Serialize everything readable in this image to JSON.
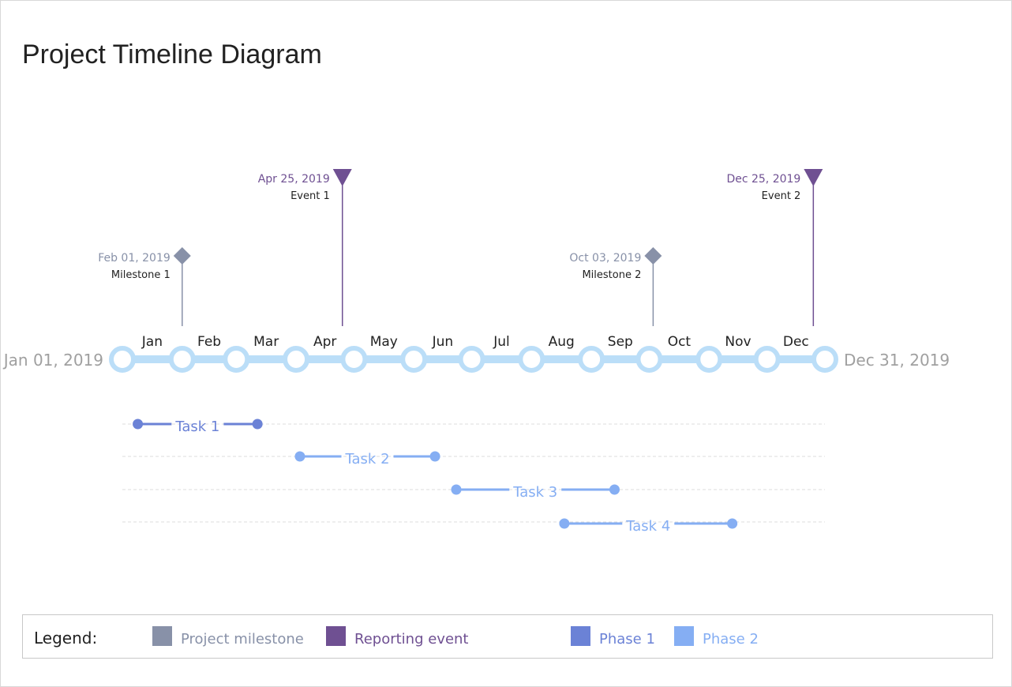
{
  "title": "Project Timeline Diagram",
  "timeline": {
    "start_label": "Jan 01, 2019",
    "end_label": "Dec 31, 2019",
    "year": 2019,
    "months": [
      "Jan",
      "Feb",
      "Mar",
      "Apr",
      "May",
      "Jun",
      "Jul",
      "Aug",
      "Sep",
      "Oct",
      "Nov",
      "Dec"
    ],
    "axis_color": "#BBDEF8"
  },
  "markers": [
    {
      "type": "milestone",
      "date": "2019-02-01",
      "date_label": "Feb 01, 2019",
      "label": "Milestone 1",
      "level": "low"
    },
    {
      "type": "event",
      "date": "2019-04-25",
      "date_label": "Apr 25, 2019",
      "label": "Event 1",
      "level": "high"
    },
    {
      "type": "milestone",
      "date": "2019-10-03",
      "date_label": "Oct 03, 2019",
      "label": "Milestone 2",
      "level": "low"
    },
    {
      "type": "event",
      "date": "2019-12-25",
      "date_label": "Dec 25, 2019",
      "label": "Event 2",
      "level": "high"
    }
  ],
  "tasks": [
    {
      "label": "Task 1",
      "phase": "Phase 1",
      "start": "2019-01-09",
      "end": "2019-03-12"
    },
    {
      "label": "Task 2",
      "phase": "Phase 2",
      "start": "2019-04-03",
      "end": "2019-06-12"
    },
    {
      "label": "Task 3",
      "phase": "Phase 2",
      "start": "2019-06-23",
      "end": "2019-09-13"
    },
    {
      "label": "Task 4",
      "phase": "Phase 2",
      "start": "2019-08-18",
      "end": "2019-11-13"
    }
  ],
  "colors": {
    "milestone": "#8891A8",
    "event": "#6F5092",
    "Phase 1": "#6B82D6",
    "Phase 2": "#85AEF3"
  },
  "legend": {
    "title": "Legend:",
    "items": [
      {
        "label": "Project milestone",
        "key": "milestone"
      },
      {
        "label": "Reporting event",
        "key": "event"
      },
      {
        "label": "Phase 1",
        "key": "Phase 1"
      },
      {
        "label": "Phase 2",
        "key": "Phase 2"
      }
    ]
  }
}
